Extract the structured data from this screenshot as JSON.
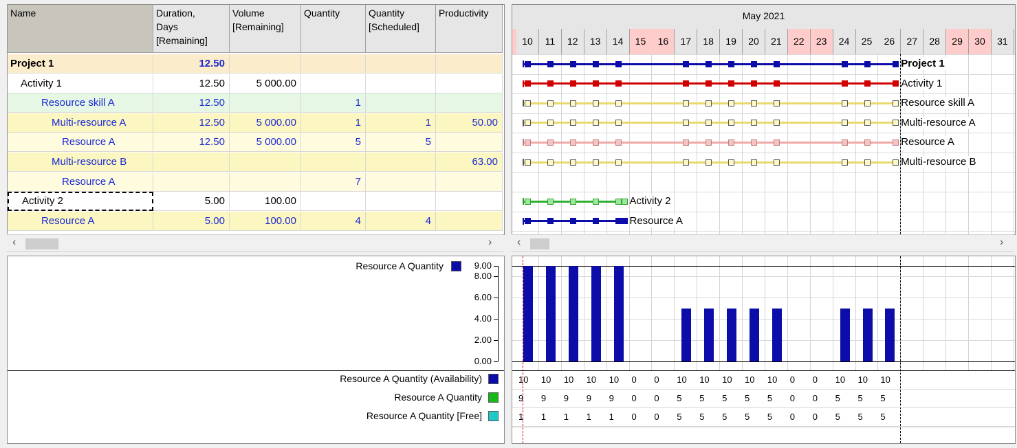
{
  "grid": {
    "columns": [
      {
        "label": "Name",
        "w": 212
      },
      {
        "label": "Duration,\nDays\n[Remaining]",
        "w": 111
      },
      {
        "label": "Volume\n[Remaining]",
        "w": 104
      },
      {
        "label": "Quantity",
        "w": 94
      },
      {
        "label": "Quantity\n[Scheduled]",
        "w": 102
      },
      {
        "label": "Productivity",
        "w": 97
      }
    ],
    "rows": [
      {
        "name": "Project 1",
        "indent": 0,
        "duration": "12.50",
        "volume": "",
        "quantity": "",
        "scheduled": "",
        "productivity": "",
        "bg": "#fbeccb",
        "nameColor": "#000",
        "numColor": "#1a2ad4",
        "bold": true
      },
      {
        "name": "Activity 1",
        "indent": 1,
        "duration": "12.50",
        "volume": "5 000.00",
        "quantity": "",
        "scheduled": "",
        "productivity": "",
        "bg": "#ffffff",
        "nameColor": "#000",
        "numColor": "#000",
        "bold": false
      },
      {
        "name": "Resource skill A",
        "indent": 3,
        "duration": "12.50",
        "volume": "",
        "quantity": "1",
        "scheduled": "",
        "productivity": "",
        "bg": "#e6f7e6",
        "nameColor": "#1a2ad4",
        "numColor": "#1a2ad4",
        "bold": false
      },
      {
        "name": "Multi-resource A",
        "indent": 4,
        "duration": "12.50",
        "volume": "5 000.00",
        "quantity": "1",
        "scheduled": "1",
        "productivity": "50.00",
        "bg": "#fcf6c0",
        "nameColor": "#1a2ad4",
        "numColor": "#1a2ad4",
        "bold": false
      },
      {
        "name": "Resource A",
        "indent": 5,
        "duration": "12.50",
        "volume": "5 000.00",
        "quantity": "5",
        "scheduled": "5",
        "productivity": "",
        "bg": "#fefbdf",
        "nameColor": "#1a2ad4",
        "numColor": "#1a2ad4",
        "bold": false
      },
      {
        "name": "Multi-resource B",
        "indent": 4,
        "duration": "",
        "volume": "",
        "quantity": "",
        "scheduled": "",
        "productivity": "63.00",
        "bg": "#fcf6c0",
        "nameColor": "#1a2ad4",
        "numColor": "#1a2ad4",
        "bold": false
      },
      {
        "name": "Resource A",
        "indent": 5,
        "duration": "",
        "volume": "",
        "quantity": "7",
        "scheduled": "",
        "productivity": "",
        "bg": "#fefbdf",
        "nameColor": "#1a2ad4",
        "numColor": "#1a2ad4",
        "bold": false
      },
      {
        "name": "Activity 2",
        "indent": 1,
        "duration": "5.00",
        "volume": "100.00",
        "quantity": "",
        "scheduled": "",
        "productivity": "",
        "bg": "#ffffff",
        "nameColor": "#000",
        "numColor": "#000",
        "bold": false,
        "selected": true
      },
      {
        "name": "Resource A",
        "indent": 3,
        "duration": "5.00",
        "volume": "100.00",
        "quantity": "4",
        "scheduled": "4",
        "productivity": "",
        "bg": "#fcf6c0",
        "nameColor": "#1a2ad4",
        "numColor": "#1a2ad4",
        "bold": false
      }
    ]
  },
  "gantt": {
    "month": "May 2021",
    "days": [
      "10",
      "11",
      "12",
      "13",
      "14",
      "15",
      "16",
      "17",
      "18",
      "19",
      "20",
      "21",
      "22",
      "23",
      "24",
      "25",
      "26",
      "27",
      "28",
      "29",
      "30",
      "31"
    ],
    "weekend_days": [
      "15",
      "16",
      "22",
      "23",
      "29",
      "30"
    ],
    "rows": [
      {
        "label": "Project 1",
        "bold": true,
        "line": "#0c0ca8",
        "fill": "#0c0ca8",
        "border": "#0c0ca8",
        "days": [
          "10",
          "11",
          "12",
          "13",
          "14",
          "17",
          "18",
          "19",
          "20",
          "21",
          "24",
          "25"
        ],
        "end_day": "26"
      },
      {
        "label": "Activity 1",
        "bold": false,
        "line": "#d00000",
        "fill": "#d00000",
        "border": "#d00000",
        "days": [
          "10",
          "11",
          "12",
          "13",
          "14",
          "17",
          "18",
          "19",
          "20",
          "21",
          "24",
          "25"
        ],
        "end_day": "26"
      },
      {
        "label": "Resource skill A",
        "bold": false,
        "line": "#e8d96a",
        "fill": "#fdf8c8",
        "border": "#555555",
        "days": [
          "10",
          "11",
          "12",
          "13",
          "14",
          "17",
          "18",
          "19",
          "20",
          "21",
          "24",
          "25"
        ],
        "end_day": "26"
      },
      {
        "label": "Multi-resource A",
        "bold": false,
        "line": "#e8d96a",
        "fill": "#fdf8c8",
        "border": "#555555",
        "days": [
          "10",
          "11",
          "12",
          "13",
          "14",
          "17",
          "18",
          "19",
          "20",
          "21",
          "24",
          "25"
        ],
        "end_day": "26"
      },
      {
        "label": "Resource A",
        "bold": false,
        "line": "#f0a8a8",
        "fill": "#f6c2c2",
        "border": "#c08080",
        "days": [
          "10",
          "11",
          "12",
          "13",
          "14",
          "17",
          "18",
          "19",
          "20",
          "21",
          "24",
          "25"
        ],
        "end_day": "26"
      },
      {
        "label": "Multi-resource B",
        "bold": false,
        "line": "#e8d96a",
        "fill": "#fdf8c8",
        "border": "#555555",
        "days": [
          "10",
          "11",
          "12",
          "13",
          "14",
          "17",
          "18",
          "19",
          "20",
          "21",
          "24",
          "25"
        ],
        "end_day": "26"
      },
      {
        "label": "",
        "bold": false,
        "line": "",
        "fill": "",
        "border": "",
        "days": [],
        "end_day": ""
      },
      {
        "label": "Activity 2",
        "bold": false,
        "line": "#30b030",
        "fill": "#9ee89e",
        "border": "#30a030",
        "days": [
          "10",
          "11",
          "12",
          "13",
          "14"
        ],
        "end_day": "14"
      },
      {
        "label": "Resource A",
        "bold": false,
        "line": "#0c0ca8",
        "fill": "#0c0ca8",
        "border": "#0c0ca8",
        "days": [
          "10",
          "11",
          "12",
          "13",
          "14"
        ],
        "end_day": "14"
      }
    ]
  },
  "histogram": {
    "legend": "Resource A Quantity",
    "legend_color": "#0c0ca8",
    "y_ticks": [
      "9.00",
      "8.00",
      "6.00",
      "4.00",
      "2.00",
      "0.00"
    ],
    "y_tick_values": [
      9,
      8,
      6,
      4,
      2,
      0
    ],
    "ymax": 9,
    "bar_values": [
      9,
      9,
      9,
      9,
      9,
      0,
      0,
      5,
      5,
      5,
      5,
      5,
      0,
      0,
      5,
      5,
      5
    ]
  },
  "table": {
    "rows": [
      {
        "label": "Resource A Quantity (Availability)",
        "color": "#0c0ca8",
        "values": [
          "10",
          "10",
          "10",
          "10",
          "10",
          "0",
          "0",
          "10",
          "10",
          "10",
          "10",
          "10",
          "0",
          "0",
          "10",
          "10",
          "10"
        ]
      },
      {
        "label": "Resource A Quantity",
        "color": "#18b818",
        "values": [
          "9",
          "9",
          "9",
          "9",
          "9",
          "0",
          "0",
          "5",
          "5",
          "5",
          "5",
          "5",
          "0",
          "0",
          "5",
          "5",
          "5"
        ]
      },
      {
        "label": "Resource A Quantity [Free]",
        "color": "#20c8c8",
        "values": [
          "1",
          "1",
          "1",
          "1",
          "1",
          "0",
          "0",
          "5",
          "5",
          "5",
          "5",
          "5",
          "0",
          "0",
          "5",
          "5",
          "5"
        ]
      }
    ]
  }
}
